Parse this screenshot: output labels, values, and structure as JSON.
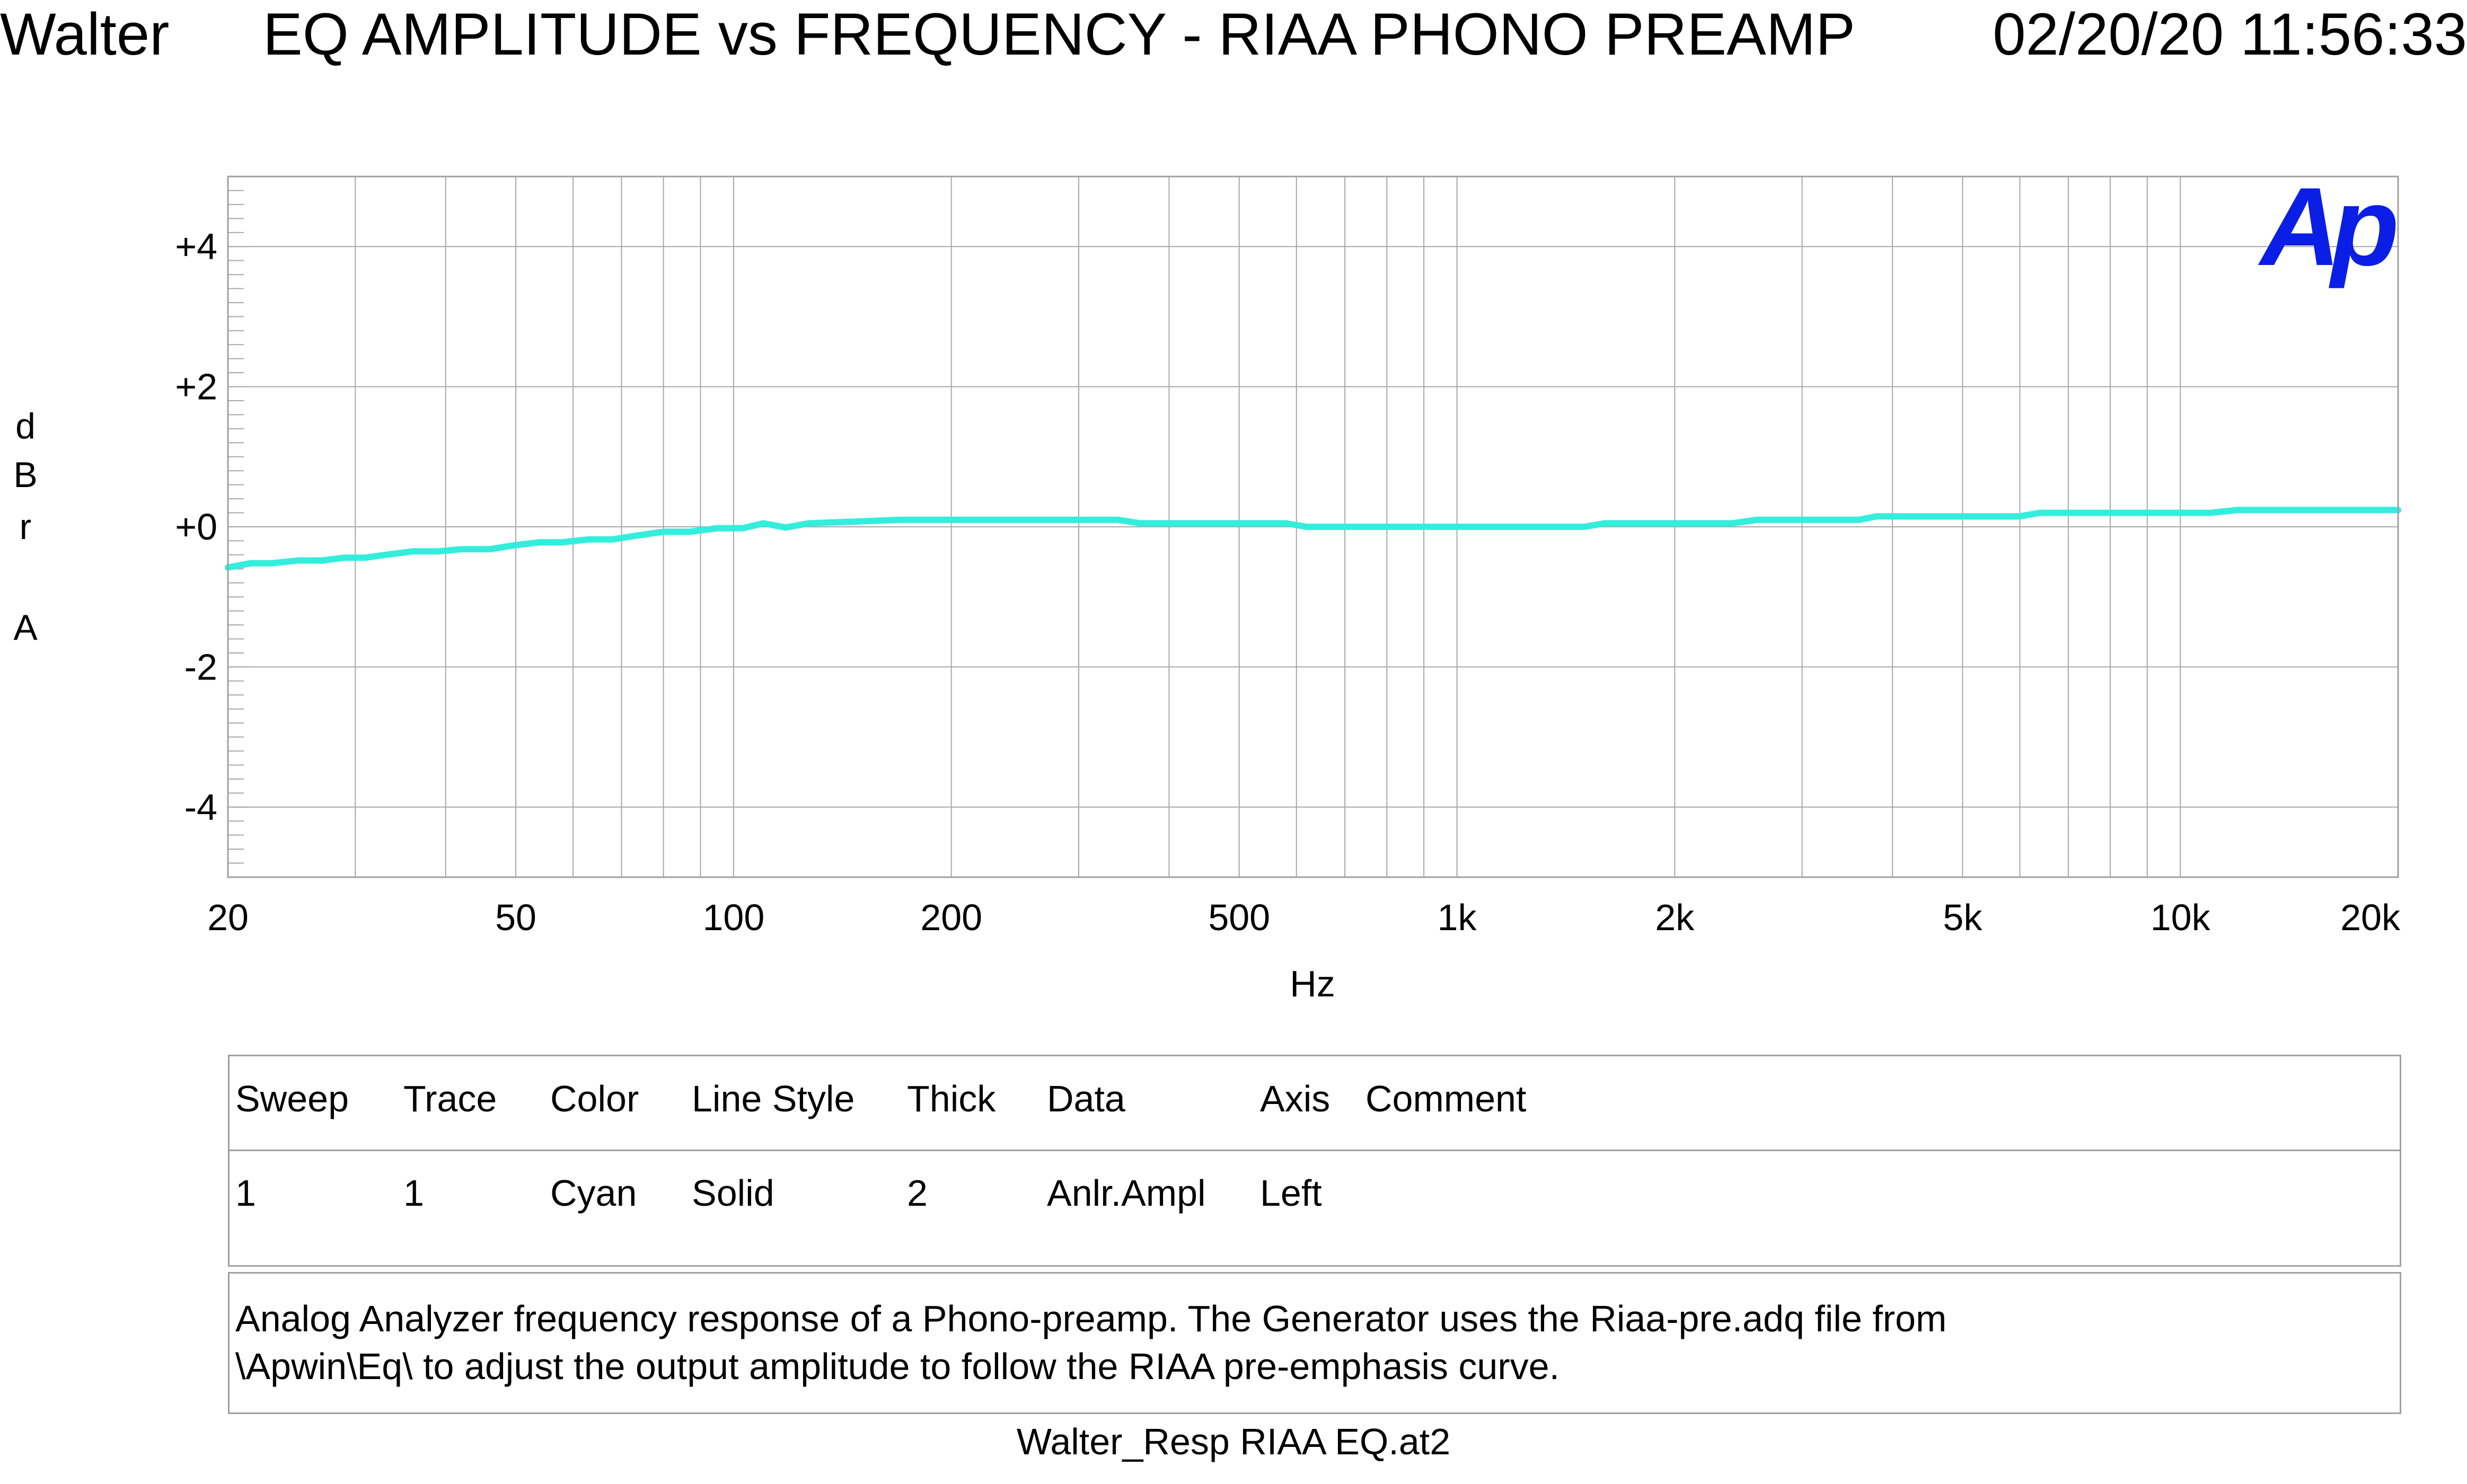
{
  "header": {
    "user": "Walter",
    "title": "EQ AMPLITUDE vs FREQUENCY - RIAA PHONO PREAMP",
    "timestamp": "02/20/20 11:56:33"
  },
  "logo": {
    "text": "Ap",
    "color": "#0a1ee6"
  },
  "chart_data": {
    "type": "line",
    "xlabel": "Hz",
    "ylabel": "dBr A",
    "x_scale": "log",
    "xlim": [
      20,
      20000
    ],
    "ylim": [
      -5,
      5
    ],
    "grid": true,
    "x_ticks": [
      {
        "value": 20,
        "label": "20"
      },
      {
        "value": 50,
        "label": "50"
      },
      {
        "value": 100,
        "label": "100"
      },
      {
        "value": 200,
        "label": "200"
      },
      {
        "value": 500,
        "label": "500"
      },
      {
        "value": 1000,
        "label": "1k"
      },
      {
        "value": 2000,
        "label": "2k"
      },
      {
        "value": 5000,
        "label": "5k"
      },
      {
        "value": 10000,
        "label": "10k"
      },
      {
        "value": 20000,
        "label": "20k"
      }
    ],
    "y_ticks": [
      {
        "value": 4,
        "label": "+4"
      },
      {
        "value": 2,
        "label": "+2"
      },
      {
        "value": 0,
        "label": "+0"
      },
      {
        "value": -2,
        "label": "-2"
      },
      {
        "value": -4,
        "label": "-4"
      }
    ],
    "series": [
      {
        "color": "#33eedd",
        "x": [
          20,
          21.5,
          23,
          25,
          27,
          29,
          31,
          33,
          36,
          39,
          42,
          46,
          50,
          54,
          58,
          63,
          68,
          74,
          80,
          87,
          95,
          103,
          110,
          118,
          127,
          170,
          340,
          365,
          580,
          620,
          1500,
          1600,
          2400,
          2600,
          3600,
          3800,
          6000,
          6400,
          11000,
          12000,
          20000
        ],
        "y": [
          -0.58,
          -0.52,
          -0.52,
          -0.48,
          -0.48,
          -0.44,
          -0.44,
          -0.4,
          -0.35,
          -0.35,
          -0.32,
          -0.32,
          -0.26,
          -0.22,
          -0.22,
          -0.18,
          -0.18,
          -0.12,
          -0.07,
          -0.07,
          -0.02,
          -0.02,
          0.05,
          -0.01,
          0.05,
          0.1,
          0.1,
          0.05,
          0.05,
          0.0,
          0.0,
          0.05,
          0.05,
          0.1,
          0.1,
          0.15,
          0.15,
          0.2,
          0.2,
          0.24,
          0.24
        ]
      }
    ]
  },
  "legend": {
    "headers": [
      "Sweep",
      "Trace",
      "Color",
      "Line Style",
      "Thick",
      "Data",
      "Axis",
      "Comment"
    ],
    "rows": [
      [
        "1",
        "1",
        "Cyan",
        "Solid",
        "2",
        "Anlr.Ampl",
        "Left",
        ""
      ]
    ]
  },
  "comment": {
    "line1": "Analog Analyzer frequency response of a Phono-preamp.  The Generator uses the Riaa-pre.adq file from",
    "line2": "\\Apwin\\Eq\\ to adjust the output amplitude to follow the RIAA pre-emphasis curve."
  },
  "footer": {
    "filename": "Walter_Resp RIAA EQ.at2"
  }
}
